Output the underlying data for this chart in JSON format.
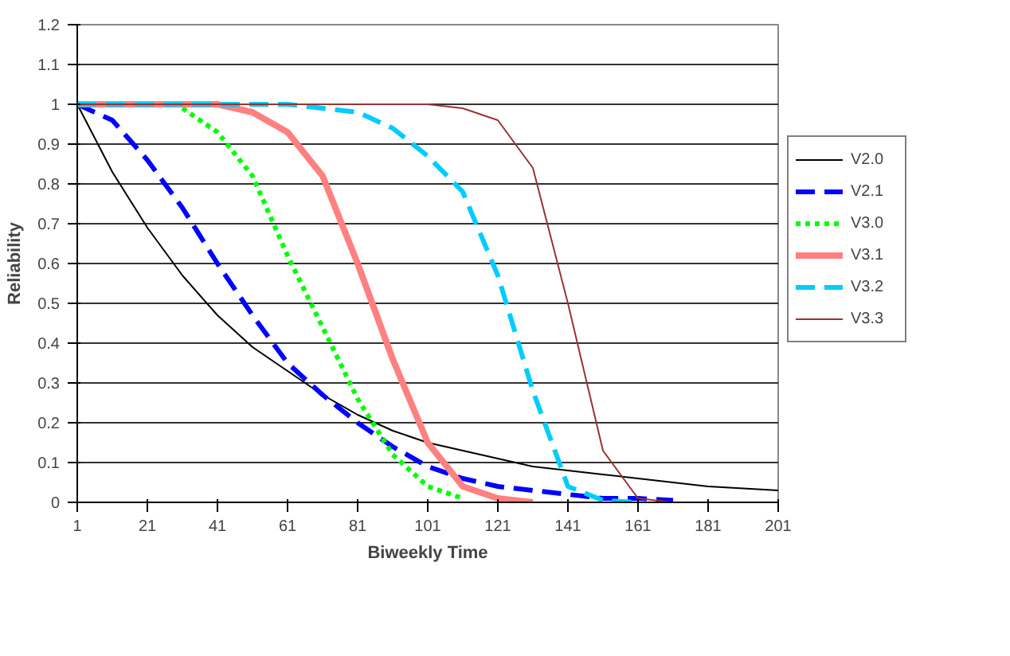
{
  "chart_data": {
    "type": "line",
    "xlabel": "Biweekly Time",
    "ylabel": "Reliability",
    "x": [
      1,
      11,
      21,
      31,
      41,
      51,
      61,
      71,
      81,
      91,
      101,
      111,
      121,
      131,
      141,
      151,
      161,
      171,
      181,
      191,
      201
    ],
    "xlim": [
      1,
      201
    ],
    "xticks": [
      1,
      21,
      41,
      61,
      81,
      101,
      121,
      141,
      161,
      181,
      201
    ],
    "ylim": [
      0,
      1.2
    ],
    "yticks": [
      0,
      0.1,
      0.2,
      0.3,
      0.4,
      0.5,
      0.6,
      0.7,
      0.8,
      0.9,
      1,
      1.1,
      1.2
    ],
    "grid": "y",
    "legend": "right",
    "series": [
      {
        "name": "V2.0",
        "color": "#000000",
        "line_style": "solid",
        "values": [
          1,
          0.83,
          0.69,
          0.57,
          0.47,
          0.39,
          0.33,
          0.27,
          0.22,
          0.18,
          0.15,
          0.13,
          0.11,
          0.09,
          0.08,
          0.07,
          0.06,
          0.05,
          0.04,
          0.035,
          0.03
        ]
      },
      {
        "name": "V2.1",
        "color": "#0000ff",
        "line_style": "dashed",
        "values": [
          1,
          0.96,
          0.86,
          0.74,
          0.6,
          0.47,
          0.35,
          0.27,
          0.2,
          0.14,
          0.09,
          0.06,
          0.04,
          0.03,
          0.02,
          0.01,
          0.01,
          0.005,
          null,
          null,
          null
        ]
      },
      {
        "name": "V3.0",
        "color": "#00ff00",
        "line_style": "dotted",
        "values": [
          null,
          null,
          null,
          0.99,
          0.93,
          0.82,
          0.62,
          0.44,
          0.26,
          0.12,
          0.04,
          0.01,
          null,
          null,
          null,
          null,
          null,
          null,
          null,
          null,
          null
        ]
      },
      {
        "name": "V3.1",
        "color": "#ff8080",
        "line_style": "solid",
        "values": [
          1,
          1,
          1,
          1,
          1,
          0.98,
          0.93,
          0.82,
          0.6,
          0.36,
          0.15,
          0.04,
          0.01,
          0,
          null,
          null,
          null,
          null,
          null,
          null,
          null
        ]
      },
      {
        "name": "V3.2",
        "color": "#00ccff",
        "line_style": "dashed",
        "values": [
          1,
          1,
          1,
          1,
          1,
          1,
          1,
          0.99,
          0.98,
          0.94,
          0.87,
          0.78,
          0.57,
          0.28,
          0.04,
          0.005,
          0,
          null,
          null,
          null,
          null
        ]
      },
      {
        "name": "V3.3",
        "color": "#993333",
        "line_style": "solid",
        "values": [
          1,
          1,
          1,
          1,
          1,
          1,
          1,
          1,
          1,
          1,
          1,
          0.99,
          0.96,
          0.84,
          0.5,
          0.13,
          0.01,
          0,
          0,
          null,
          null
        ]
      }
    ]
  }
}
